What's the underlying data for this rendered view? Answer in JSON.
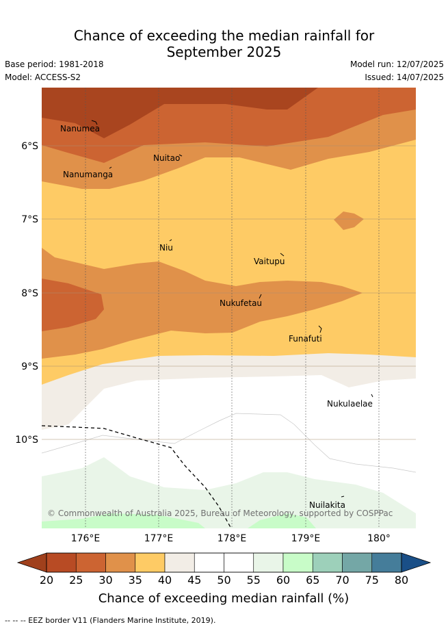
{
  "header": {
    "title_line1": "Chance of exceeding the median rainfall for",
    "title_line2": "September 2025",
    "base_period": "Base period: 1981-2018",
    "model": "Model: ACCESS-S2",
    "model_run": "Model run: 12/07/2025",
    "issued": "Issued: 14/07/2025"
  },
  "map": {
    "lon_ticks": [
      "176°E",
      "177°E",
      "178°E",
      "179°E",
      "180°"
    ],
    "lat_ticks": [
      "6°S",
      "7°S",
      "8°S",
      "9°S",
      "10°S"
    ],
    "places": [
      {
        "name": "Nanumea"
      },
      {
        "name": "Nuitao"
      },
      {
        "name": "Nanumanga"
      },
      {
        "name": "Niu"
      },
      {
        "name": "Vaitupu"
      },
      {
        "name": "Nukufetau"
      },
      {
        "name": "Funafuti"
      },
      {
        "name": "Nukulaelae"
      },
      {
        "name": "Nuilakita"
      }
    ],
    "copyright": "© Commonwealth of Australia 2025, Bureau of Meteorology, supported by COSPPac"
  },
  "colorbar": {
    "ticks": [
      "20",
      "25",
      "30",
      "35",
      "40",
      "45",
      "50",
      "55",
      "60",
      "65",
      "70",
      "75",
      "80"
    ],
    "colors": [
      "#a0401c",
      "#b84b24",
      "#cc6432",
      "#e0914a",
      "#fecb65",
      "#f2ede6",
      "#ffffff",
      "#ffffff",
      "#e9f5e8",
      "#c8fcc8",
      "#9dd0ba",
      "#74a7a6",
      "#457d9a",
      "#1a4f87"
    ],
    "label": "Chance of exceeding median rainfall (%)"
  },
  "footnote": "--  --  -- EEZ border V11 (Flanders Marine Institute, 2019)."
}
